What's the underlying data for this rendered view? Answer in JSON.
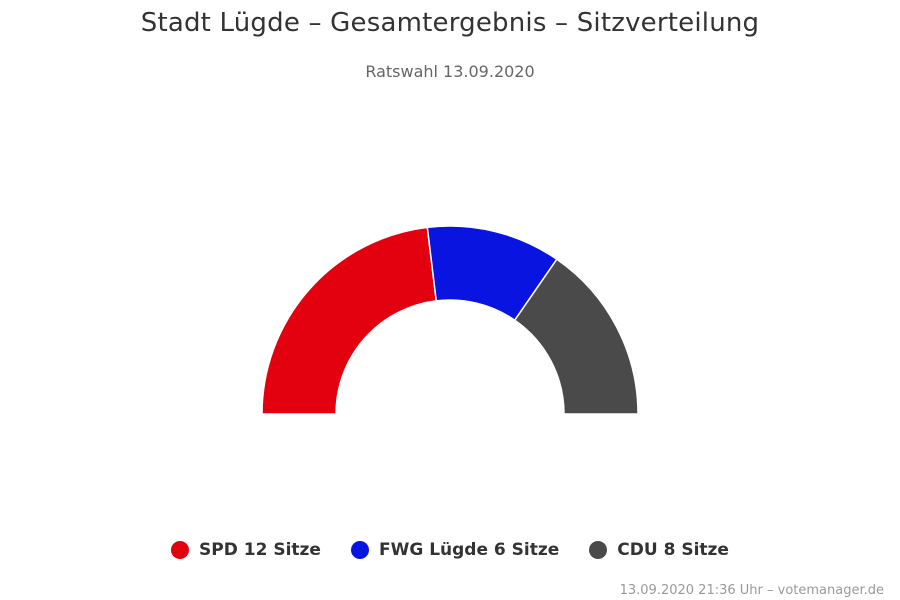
{
  "chart_data": {
    "type": "pie",
    "variant": "semi-donut",
    "title": "Stadt Lügde – Gesamtergebnis – Sitzverteilung",
    "subtitle": "Ratswahl 13.09.2020",
    "series": [
      {
        "name": "SPD",
        "value": 12,
        "color": "#e3000f",
        "legend_label": "SPD 12 Sitze"
      },
      {
        "name": "FWG Lügde",
        "value": 6,
        "color": "#0a14e0",
        "legend_label": "FWG Lügde 6 Sitze"
      },
      {
        "name": "CDU",
        "value": 8,
        "color": "#4a4a4a",
        "legend_label": "CDU 8 Sitze"
      }
    ],
    "legend_position": "bottom-center"
  },
  "credits": "13.09.2020 21:36 Uhr – votemanager.de"
}
